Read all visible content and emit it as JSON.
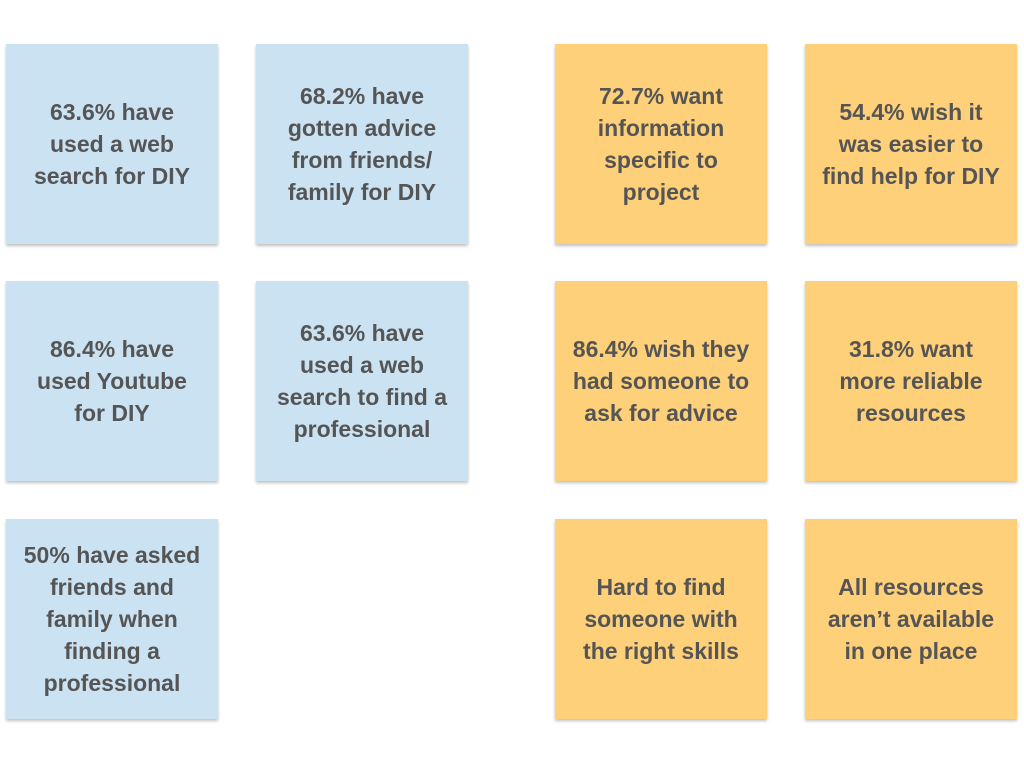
{
  "colors": {
    "blue_note": "#cbe2f2",
    "orange_note": "#fdd079",
    "text": "#555555"
  },
  "blue_notes": [
    {
      "text": "63.6% have\nused a web\nsearch for DIY"
    },
    {
      "text": "68.2% have\ngotten advice\nfrom friends/\nfamily for DIY"
    },
    {
      "text": "86.4% have\nused Youtube\nfor DIY"
    },
    {
      "text": "63.6% have\nused a web\nsearch to find a\nprofessional"
    },
    {
      "text": "50% have asked\nfriends and\nfamily when\nfinding a\nprofessional"
    }
  ],
  "orange_notes": [
    {
      "text": "72.7% want\ninformation\nspecific to\nproject"
    },
    {
      "text": "54.4% wish it\nwas easier to\nfind help for DIY"
    },
    {
      "text": "86.4% wish they\nhad someone to\nask for advice"
    },
    {
      "text": "31.8% want\nmore reliable\nresources"
    },
    {
      "text": "Hard to find\nsomeone with\nthe right skills"
    },
    {
      "text": "All resources\naren’t available\nin one place"
    }
  ]
}
